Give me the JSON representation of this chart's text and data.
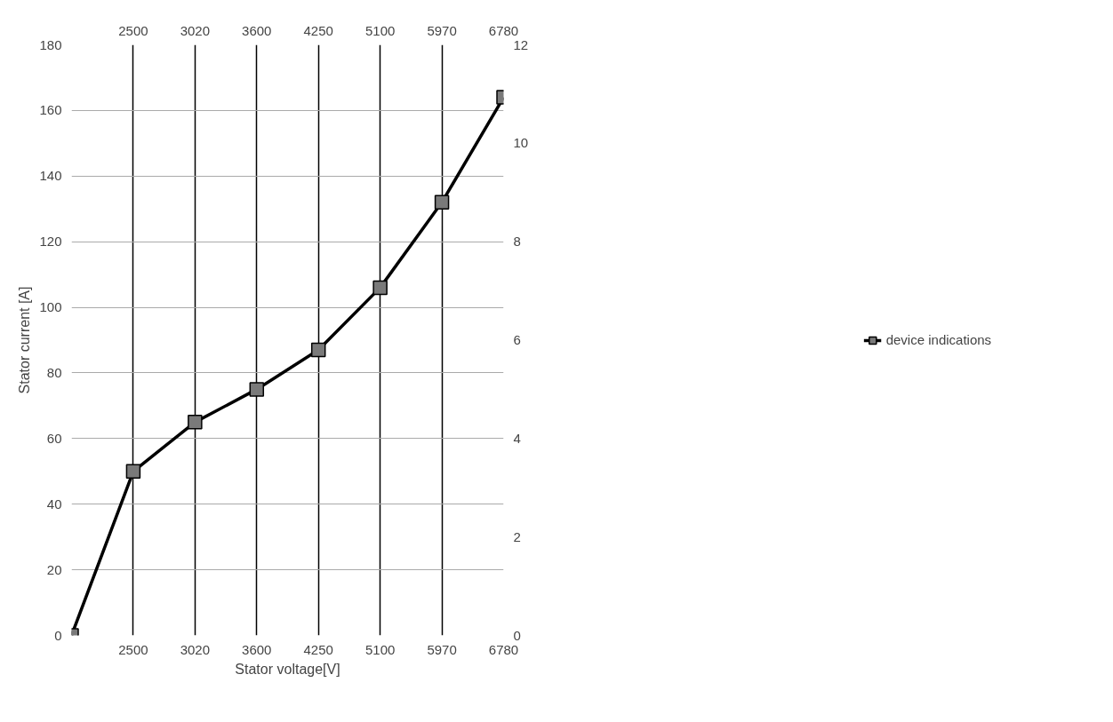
{
  "chart_data": {
    "type": "line",
    "xlabel": "Stator voltage[V]",
    "ylabel": "Stator current [A]",
    "categories": [
      null,
      "2500",
      "3020",
      "3600",
      "4250",
      "5100",
      "5970",
      "6780"
    ],
    "series": [
      {
        "name": "device indications",
        "color": "#000000",
        "values": [
          0,
          50,
          65,
          75,
          87,
          106,
          132,
          164
        ]
      }
    ],
    "ylim": [
      0,
      180
    ],
    "yticks": [
      0,
      20,
      40,
      60,
      80,
      100,
      120,
      140,
      160,
      180
    ],
    "y2lim": [
      0,
      12
    ],
    "y2ticks": [
      0,
      2,
      4,
      6,
      8,
      10,
      12
    ],
    "grid": true,
    "legend": "right",
    "marker": "square",
    "line_style": "solid"
  }
}
